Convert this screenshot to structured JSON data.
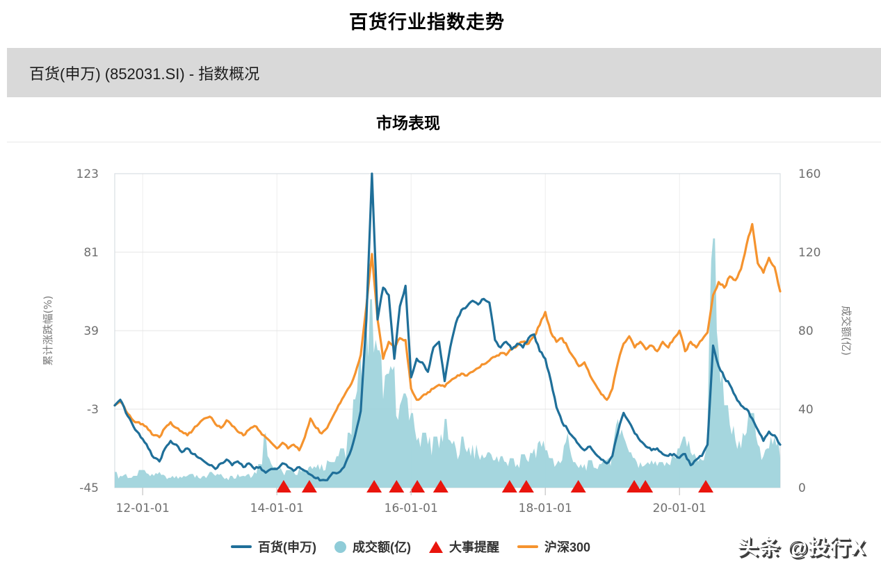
{
  "page": {
    "title": "百货行业指数走势",
    "header_bar_text": "百货(申万) (852031.SI) - 指数概况",
    "section_title": "市场表现",
    "watermark": "头条 @投行X"
  },
  "colors": {
    "baihuo_line": "#1f6f99",
    "hs300_line": "#f5932e",
    "volume_fill": "#9dd2db",
    "event_marker": "#e9150d",
    "grid_line": "#e4e4e4",
    "v_grid_line": "#ededed",
    "plot_border": "#d9dee3",
    "tick_mark": "#c9c9c9",
    "tick_text": "#6e6e6e",
    "axis_title_text": "#7a7a7a",
    "header_bar_bg": "#d9d9d9",
    "legend_text": "#333333"
  },
  "chart_data": {
    "type": "line",
    "title": "市场表现",
    "x_start": "2011-08",
    "x_end": "2021-07",
    "x_interval": "monthly",
    "x_tick_labels": [
      "12-01-01",
      "14-01-01",
      "16-01-01",
      "18-01-01",
      "20-01-01"
    ],
    "x_tick_month_index": [
      5,
      29,
      53,
      77,
      101
    ],
    "left_axis": {
      "label": "累计涨跌幅(%)",
      "ticks": [
        123,
        81,
        39,
        -3,
        -45
      ],
      "max": 123,
      "min": -45
    },
    "right_axis": {
      "label": "成交额(亿)",
      "ticks": [
        160,
        120,
        80,
        40,
        0
      ],
      "max": 160,
      "min": 0
    },
    "series": [
      {
        "name": "百货(申万)",
        "type": "line",
        "axis": "left",
        "color": "#1f6f99",
        "values": [
          -1,
          2,
          -5,
          -10,
          -15,
          -19,
          -24,
          -29,
          -31,
          -24,
          -20,
          -22,
          -26,
          -24,
          -27,
          -29,
          -31,
          -33,
          -35,
          -32,
          -30,
          -33,
          -31,
          -34,
          -32,
          -35,
          -34,
          -37,
          -35,
          -35,
          -32,
          -34,
          -36,
          -34,
          -36,
          -38,
          -40,
          -41,
          -41,
          -37,
          -37,
          -34,
          -27,
          -17,
          -4,
          45,
          123,
          45,
          62,
          58,
          24,
          52,
          63,
          14,
          24,
          22,
          17,
          30,
          33,
          12,
          30,
          43,
          50,
          52,
          55,
          53,
          56,
          54,
          34,
          30,
          33,
          29,
          32,
          30,
          35,
          37,
          28,
          24,
          12,
          -2,
          -10,
          -14,
          -18,
          -22,
          -25,
          -23,
          -27,
          -30,
          -32,
          -28,
          -15,
          -5,
          -10,
          -16,
          -20,
          -23,
          -25,
          -24,
          -27,
          -28,
          -27,
          -29,
          -27,
          -33,
          -30,
          -28,
          -22,
          31,
          20,
          14,
          10,
          4,
          -1,
          -3,
          -8,
          -14,
          -20,
          -15,
          -17,
          -22
        ]
      },
      {
        "name": "成交额(亿)",
        "type": "area",
        "axis": "right",
        "color": "#9dd2db",
        "values": [
          8,
          6,
          7,
          5,
          6,
          9,
          7,
          6,
          8,
          6,
          5,
          6,
          5,
          6,
          7,
          5,
          6,
          8,
          6,
          7,
          5,
          6,
          7,
          6,
          7,
          8,
          12,
          28,
          12,
          10,
          8,
          9,
          8,
          10,
          9,
          11,
          10,
          12,
          14,
          13,
          16,
          20,
          28,
          45,
          65,
          85,
          96,
          70,
          45,
          58,
          62,
          42,
          48,
          38,
          24,
          28,
          22,
          26,
          20,
          35,
          24,
          20,
          26,
          18,
          22,
          17,
          15,
          18,
          14,
          16,
          13,
          15,
          12,
          17,
          13,
          20,
          24,
          19,
          15,
          12,
          14,
          28,
          13,
          10,
          12,
          14,
          10,
          12,
          14,
          18,
          35,
          26,
          18,
          15,
          13,
          12,
          14,
          11,
          13,
          12,
          16,
          20,
          26,
          18,
          15,
          14,
          30,
          127,
          70,
          42,
          32,
          24,
          20,
          28,
          38,
          22,
          16,
          20,
          26,
          15
        ]
      },
      {
        "name": "沪深300",
        "type": "line",
        "axis": "left",
        "color": "#f5932e",
        "values": [
          -1,
          1,
          -4,
          -8,
          -10,
          -11,
          -14,
          -17,
          -18,
          -13,
          -10,
          -13,
          -15,
          -17,
          -14,
          -11,
          -8,
          -7,
          -11,
          -13,
          -9,
          -12,
          -15,
          -17,
          -14,
          -12,
          -15,
          -18,
          -21,
          -24,
          -21,
          -24,
          -22,
          -25,
          -18,
          -8,
          -13,
          -16,
          -13,
          -7,
          -1,
          4,
          9,
          16,
          26,
          52,
          80,
          45,
          24,
          33,
          30,
          35,
          34,
          8,
          2,
          4,
          6,
          8,
          10,
          9,
          12,
          14,
          16,
          15,
          17,
          19,
          21,
          23,
          25,
          27,
          26,
          29,
          31,
          33,
          32,
          36,
          42,
          49,
          38,
          33,
          35,
          30,
          25,
          20,
          22,
          15,
          10,
          5,
          2,
          8,
          22,
          32,
          36,
          30,
          33,
          29,
          31,
          28,
          33,
          30,
          35,
          39,
          28,
          33,
          30,
          34,
          38,
          58,
          65,
          62,
          68,
          66,
          72,
          85,
          96,
          75,
          70,
          78,
          73,
          60
        ]
      }
    ],
    "events": {
      "name": "大事提醒",
      "color": "#e9150d",
      "month_positions": [
        30.2,
        34.8,
        46.4,
        50.4,
        54.1,
        58.3,
        70.6,
        73.6,
        82.9,
        92.9,
        94.9,
        105.7
      ]
    },
    "legend": [
      {
        "label": "百货(申万)",
        "marker": "line",
        "color": "#1f6f99"
      },
      {
        "label": "成交额(亿)",
        "marker": "circle",
        "color": "#8fccd8"
      },
      {
        "label": "大事提醒",
        "marker": "triangle",
        "color": "#e9150d"
      },
      {
        "label": "沪深300",
        "marker": "line",
        "color": "#f5932e"
      }
    ]
  }
}
